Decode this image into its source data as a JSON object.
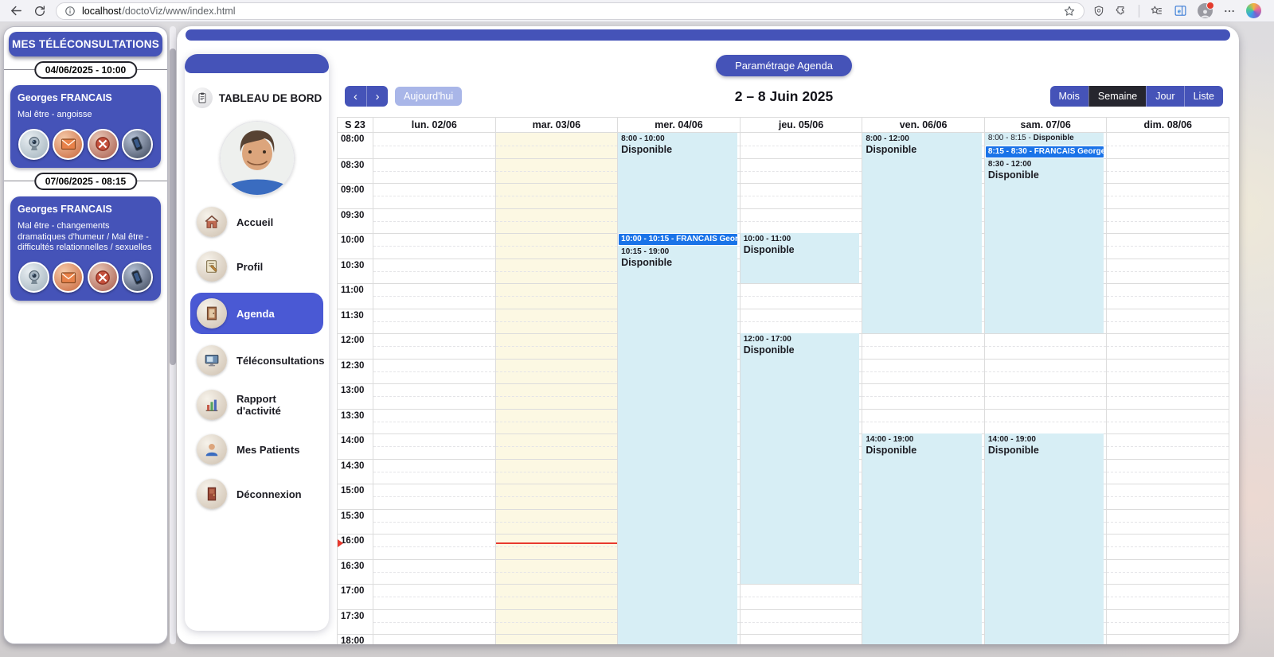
{
  "colors": {
    "accent": "#4553b8",
    "nav_active": "#4a59d4",
    "booked_event": "#1a73e8",
    "available_event_bg": "#d7eef5",
    "today_column_bg": "#fcf8e3",
    "now_line": "#e8392e",
    "active_view_bg": "#26262e",
    "today_button_bg": "#a9b6e8"
  },
  "browser": {
    "url_host": "localhost",
    "url_path": "/doctoViz/www/index.html",
    "icons": [
      "back-icon",
      "refresh-icon",
      "site-info-icon",
      "bookmark-star-icon",
      "shield-icon",
      "extensions-icon",
      "favorites-bar-icon",
      "edge-sidebar-icon",
      "profile-avatar",
      "more-menu-icon",
      "copilot-icon"
    ]
  },
  "sidebar": {
    "title": "MES TÉLÉCONSULTATIONS",
    "appointments": [
      {
        "datetime": "04/06/2025 - 10:00",
        "patient": "Georges FRANCAIS",
        "reason": "Mal être - angoisse"
      },
      {
        "datetime": "07/06/2025 - 08:15",
        "patient": "Georges FRANCAIS",
        "reason": "Mal être - changements dramatiques d'humeur / Mal être - difficultés relationnelles / sexuelles"
      }
    ],
    "action_icons": [
      {
        "name": "webcam-icon",
        "glyph": "webcam",
        "bg": "bg-cam"
      },
      {
        "name": "mail-icon",
        "glyph": "envelope",
        "bg": "bg-mail"
      },
      {
        "name": "cancel-icon",
        "glyph": "cancel",
        "bg": "bg-x"
      },
      {
        "name": "phone-icon",
        "glyph": "phone",
        "bg": "bg-ph"
      }
    ]
  },
  "nav": {
    "title": "TABLEAU DE BORD",
    "items": [
      {
        "id": "accueil",
        "label": "Accueil",
        "icon": "house",
        "active": false
      },
      {
        "id": "profil",
        "label": "Profil",
        "icon": "notebook",
        "active": false
      },
      {
        "id": "agenda",
        "label": "Agenda",
        "icon": "agenda",
        "active": true
      },
      {
        "id": "teleconsultations",
        "label": "Téléconsultations",
        "icon": "monitor",
        "active": false
      },
      {
        "id": "rapport-activite",
        "label": "Rapport d'activité",
        "icon": "chart",
        "active": false
      },
      {
        "id": "mes-patients",
        "label": "Mes Patients",
        "icon": "person",
        "active": false
      },
      {
        "id": "deconnexion",
        "label": "Déconnexion",
        "icon": "door",
        "active": false
      }
    ]
  },
  "calendar": {
    "settings_button": "Paramétrage Agenda",
    "prev_glyph": "‹",
    "next_glyph": "›",
    "today_button": "Aujourd'hui",
    "title": "2 – 8 Juin 2025",
    "views": [
      "Mois",
      "Semaine",
      "Jour",
      "Liste"
    ],
    "active_view": "Semaine",
    "week_label": "S 23",
    "days": [
      "lun. 02/06",
      "mar. 03/06",
      "mer. 04/06",
      "jeu. 05/06",
      "ven. 06/06",
      "sam. 07/06",
      "dim. 08/06"
    ],
    "today_index": 1,
    "time_labels": [
      "08:00",
      "08:30",
      "09:00",
      "09:30",
      "10:00",
      "10:30",
      "11:00",
      "11:30",
      "12:00",
      "12:30",
      "13:00",
      "13:30",
      "14:00",
      "14:30",
      "15:00",
      "15:30",
      "16:00",
      "16:30",
      "17:00",
      "17:30",
      "18:00"
    ],
    "grid_start": "08:00",
    "now_indicator": {
      "day_index": 1,
      "time": "16:10"
    },
    "events": [
      {
        "day": 2,
        "start": "8:00",
        "end": "10:00",
        "time_label": "8:00 - 10:00",
        "title": "Disponible",
        "kind": "available"
      },
      {
        "day": 2,
        "start": "10:00",
        "end": "10:15",
        "time_label": "10:00 - 10:15",
        "title": "FRANCAIS Georges",
        "kind": "booked"
      },
      {
        "day": 2,
        "start": "10:15",
        "end": "19:00",
        "time_label": "10:15 - 19:00",
        "title": "Disponible",
        "kind": "available"
      },
      {
        "day": 3,
        "start": "10:00",
        "end": "11:00",
        "time_label": "10:00 - 11:00",
        "title": "Disponible",
        "kind": "available"
      },
      {
        "day": 3,
        "start": "12:00",
        "end": "17:00",
        "time_label": "12:00 - 17:00",
        "title": "Disponible",
        "kind": "available"
      },
      {
        "day": 4,
        "start": "8:00",
        "end": "12:00",
        "time_label": "8:00 - 12:00",
        "title": "Disponible",
        "kind": "available"
      },
      {
        "day": 4,
        "start": "14:00",
        "end": "19:00",
        "time_label": "14:00 - 19:00",
        "title": "Disponible",
        "kind": "available"
      },
      {
        "day": 5,
        "start": "8:00",
        "end": "8:15",
        "time_label": "8:00 - 8:15",
        "title": "Disponible",
        "kind": "available",
        "inline": true
      },
      {
        "day": 5,
        "start": "8:15",
        "end": "8:30",
        "time_label": "8:15 - 8:30",
        "title": "FRANCAIS Georges",
        "kind": "booked"
      },
      {
        "day": 5,
        "start": "8:30",
        "end": "12:00",
        "time_label": "8:30 - 12:00",
        "title": "Disponible",
        "kind": "available"
      },
      {
        "day": 5,
        "start": "14:00",
        "end": "19:00",
        "time_label": "14:00 - 19:00",
        "title": "Disponible",
        "kind": "available"
      }
    ]
  }
}
